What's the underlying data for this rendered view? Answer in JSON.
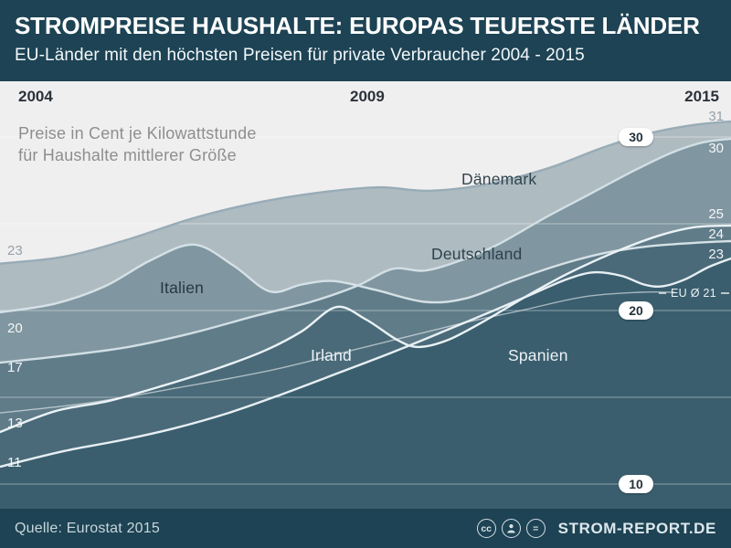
{
  "header": {
    "title": "STROMPREISE HAUSHALTE: EUROPAS TEUERSTE LÄNDER",
    "subtitle": "EU-Länder mit den höchsten Preisen für private Verbraucher 2004 - 2015"
  },
  "chart": {
    "years": [
      "2004",
      "2009",
      "2015"
    ],
    "note_line1": "Preise in Cent je Kilowattstunde",
    "note_line2": "für Haushalte mittlerer Größe",
    "eu_label": "EU Ø 21"
  },
  "chart_data": {
    "type": "area",
    "title": "Strompreise Haushalte: Europas teuerste Länder",
    "unit": "Cent je Kilowattstunde",
    "x_range": [
      2004,
      2015
    ],
    "x_ticks": [
      "2004",
      "2009",
      "2015"
    ],
    "axis": {
      "y_gridlines": [
        30,
        25,
        20,
        15,
        10
      ],
      "pill_values": [
        30,
        20,
        10
      ]
    },
    "style": {
      "background": "#f0eff0",
      "header_bg": "#1d4354",
      "band_fill": "#174256",
      "band_alpha": 0.3,
      "gridline_color": "rgba(255,255,255,0.42)",
      "pill_bg": "#ffffff",
      "pill_text": "#24323b"
    },
    "series": [
      {
        "id": "dk",
        "name": "Dänemark",
        "start_label": "23",
        "end_label": "31",
        "stroke": "#98acb7",
        "points": [
          [
            2004,
            22.7
          ],
          [
            2004.96,
            23.1
          ],
          [
            2005.93,
            24.1
          ],
          [
            2006.89,
            25.3
          ],
          [
            2007.85,
            26.2
          ],
          [
            2008.81,
            26.8
          ],
          [
            2009.71,
            27.1
          ],
          [
            2010.46,
            26.9
          ],
          [
            2011.36,
            27.3
          ],
          [
            2012.25,
            28.2
          ],
          [
            2013.08,
            29.4
          ],
          [
            2013.76,
            30.2
          ],
          [
            2014.45,
            30.7
          ],
          [
            2015,
            30.9
          ]
        ]
      },
      {
        "id": "it",
        "name": "Italien",
        "start_label": "20",
        "end_label": "24",
        "stroke": "#d5e1e6",
        "points": [
          [
            2004,
            19.9
          ],
          [
            2004.83,
            20.4
          ],
          [
            2005.58,
            21.4
          ],
          [
            2006.27,
            22.9
          ],
          [
            2006.92,
            23.8
          ],
          [
            2007.51,
            22.6
          ],
          [
            2008.06,
            21.1
          ],
          [
            2008.54,
            21.5
          ],
          [
            2009.02,
            21.7
          ],
          [
            2009.64,
            21.2
          ],
          [
            2010.39,
            20.5
          ],
          [
            2011.01,
            20.7
          ],
          [
            2011.7,
            21.7
          ],
          [
            2012.39,
            22.6
          ],
          [
            2013.08,
            23.3
          ],
          [
            2013.76,
            23.7
          ],
          [
            2014.45,
            23.9
          ],
          [
            2015,
            24.0
          ]
        ]
      },
      {
        "id": "de",
        "name": "Deutschland",
        "start_label": "17",
        "end_label": "30",
        "stroke": "#d2dfe5",
        "points": [
          [
            2004,
            17.0
          ],
          [
            2004.96,
            17.4
          ],
          [
            2005.93,
            17.9
          ],
          [
            2006.89,
            18.7
          ],
          [
            2007.85,
            19.7
          ],
          [
            2008.68,
            20.5
          ],
          [
            2009.36,
            21.4
          ],
          [
            2009.91,
            22.4
          ],
          [
            2010.39,
            22.3
          ],
          [
            2010.94,
            22.9
          ],
          [
            2011.49,
            23.8
          ],
          [
            2012.18,
            25.3
          ],
          [
            2012.87,
            26.7
          ],
          [
            2013.56,
            28.1
          ],
          [
            2014.11,
            29.1
          ],
          [
            2014.59,
            29.7
          ],
          [
            2015,
            29.9
          ]
        ]
      },
      {
        "id": "ie",
        "name": "Irland",
        "start_label": "13",
        "end_label": "25",
        "stroke": "#eaf2f5",
        "points": [
          [
            2004,
            13.0
          ],
          [
            2004.83,
            14.2
          ],
          [
            2005.65,
            14.8
          ],
          [
            2006.48,
            15.7
          ],
          [
            2007.3,
            16.7
          ],
          [
            2007.99,
            17.7
          ],
          [
            2008.54,
            18.8
          ],
          [
            2009.06,
            20.2
          ],
          [
            2009.5,
            19.5
          ],
          [
            2009.98,
            18.3
          ],
          [
            2010.3,
            17.9
          ],
          [
            2010.74,
            18.3
          ],
          [
            2011.29,
            19.4
          ],
          [
            2011.91,
            20.8
          ],
          [
            2012.53,
            22.1
          ],
          [
            2013.21,
            23.3
          ],
          [
            2013.9,
            24.3
          ],
          [
            2014.45,
            24.8
          ],
          [
            2015,
            24.9
          ]
        ]
      },
      {
        "id": "es",
        "name": "Spanien",
        "start_label": "11",
        "end_label": "23",
        "stroke": "#e7eff3",
        "points": [
          [
            2004,
            11.0
          ],
          [
            2004.96,
            11.9
          ],
          [
            2005.79,
            12.5
          ],
          [
            2006.61,
            13.2
          ],
          [
            2007.44,
            14.1
          ],
          [
            2008.26,
            15.2
          ],
          [
            2009.09,
            16.4
          ],
          [
            2009.91,
            17.6
          ],
          [
            2010.74,
            18.9
          ],
          [
            2011.43,
            20.0
          ],
          [
            2011.98,
            20.9
          ],
          [
            2012.53,
            21.8
          ],
          [
            2012.94,
            22.2
          ],
          [
            2013.35,
            22.0
          ],
          [
            2013.69,
            21.5
          ],
          [
            2013.97,
            21.4
          ],
          [
            2014.31,
            21.8
          ],
          [
            2014.66,
            22.5
          ],
          [
            2015,
            23.0
          ]
        ]
      }
    ],
    "eu_series": {
      "id": "eu",
      "name": "EU Ø",
      "end_value": 21,
      "stroke": "rgba(255,255,255,0.55)",
      "points": [
        [
          2004,
          14.1
        ],
        [
          2005.38,
          14.7
        ],
        [
          2006.75,
          15.6
        ],
        [
          2008.13,
          16.6
        ],
        [
          2009.5,
          17.9
        ],
        [
          2010.88,
          19.2
        ],
        [
          2011.84,
          20.0
        ],
        [
          2012.8,
          20.8
        ],
        [
          2013.63,
          21.05
        ],
        [
          2014.15,
          21.05
        ]
      ]
    }
  },
  "footer": {
    "source": "Quelle: Eurostat 2015",
    "brand": "STROM-REPORT.DE",
    "icons": {
      "cc": "cc",
      "nd": "="
    }
  }
}
